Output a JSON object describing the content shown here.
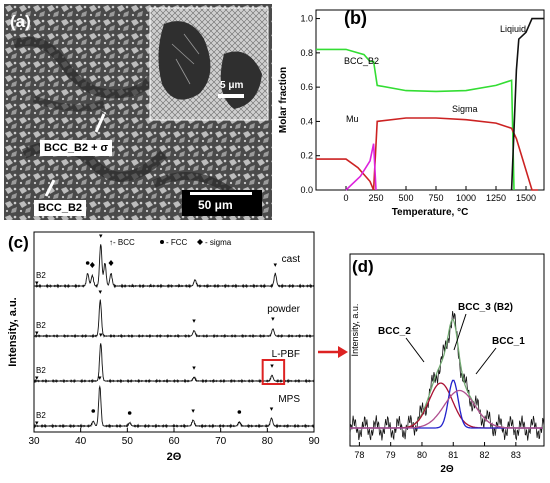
{
  "panel_a": {
    "label": "(a)",
    "phase_1": "BCC_B2 + σ",
    "phase_2": "BCC_B2",
    "scale_main": "50 μm",
    "scale_inset": "5 μm"
  },
  "chart_data": [
    {
      "panel": "(b)",
      "type": "line",
      "xlabel": "Temperature, °C",
      "ylabel": "Molar fraction",
      "xlim": [
        -250,
        1650
      ],
      "ylim": [
        0,
        1.05
      ],
      "xticks": [
        0,
        250,
        500,
        750,
        1000,
        1250,
        1500
      ],
      "yticks": [
        0.0,
        0.2,
        0.4,
        0.6,
        0.8,
        1.0
      ],
      "annotations": [
        "BCC_B2",
        "Sigma",
        "Mu",
        "Liqiuid"
      ],
      "series": [
        {
          "name": "BCC_B2",
          "color": "#33dd33",
          "x": [
            -250,
            0,
            150,
            200,
            230,
            260,
            500,
            750,
            1000,
            1250,
            1380,
            1400
          ],
          "y": [
            0.82,
            0.82,
            0.79,
            0.75,
            0.75,
            0.61,
            0.58,
            0.575,
            0.58,
            0.61,
            0.64,
            0.0
          ]
        },
        {
          "name": "Sigma",
          "color": "#cc2222",
          "x": [
            -250,
            0,
            100,
            200,
            230,
            260,
            500,
            750,
            1000,
            1250,
            1380,
            1420,
            1550,
            1600
          ],
          "y": [
            0.18,
            0.18,
            0.13,
            0.05,
            0.0,
            0.4,
            0.42,
            0.42,
            0.41,
            0.39,
            0.36,
            0.3,
            0.0,
            0.0
          ]
        },
        {
          "name": "Mu",
          "color": "#dd22dd",
          "x": [
            0,
            120,
            200,
            230,
            250
          ],
          "y": [
            0.0,
            0.08,
            0.17,
            0.27,
            0.0
          ]
        },
        {
          "name": "Liquid",
          "color": "#111111",
          "x": [
            1380,
            1420,
            1440,
            1500,
            1550,
            1650
          ],
          "y": [
            0.0,
            0.7,
            0.88,
            0.92,
            1.0,
            1.0
          ]
        }
      ]
    },
    {
      "panel": "(c)",
      "type": "line",
      "xlabel": "2Θ",
      "ylabel": "Intensity, a.u.",
      "xlim": [
        30,
        90
      ],
      "xticks": [
        30,
        40,
        50,
        60,
        70,
        80,
        90
      ],
      "legend": [
        "- BCC",
        "- FCC",
        "- sigma"
      ],
      "series": [
        {
          "name": "cast",
          "peaks": [
            [
              41.5,
              0.3
            ],
            [
              42.5,
              0.25
            ],
            [
              44.3,
              1.0
            ],
            [
              45.2,
              0.55
            ],
            [
              46.5,
              0.3
            ],
            [
              64.5,
              0.15
            ],
            [
              81.7,
              0.3
            ]
          ]
        },
        {
          "name": "powder",
          "peaks": [
            [
              44.2,
              1.0
            ],
            [
              64.3,
              0.15
            ],
            [
              81.2,
              0.2
            ]
          ]
        },
        {
          "name": "L-PBF",
          "peaks": [
            [
              44.3,
              1.0
            ],
            [
              64.3,
              0.1
            ],
            [
              81.0,
              0.15
            ]
          ]
        },
        {
          "name": "MPS",
          "peaks": [
            [
              42.7,
              0.12
            ],
            [
              44.1,
              1.0
            ],
            [
              50.5,
              0.08
            ],
            [
              64.1,
              0.15
            ],
            [
              74.0,
              0.1
            ],
            [
              80.9,
              0.2
            ]
          ]
        }
      ],
      "annotations": [
        "B2",
        "B2",
        "B2",
        "B2"
      ]
    },
    {
      "panel": "(d)",
      "type": "line",
      "xlabel": "2Θ",
      "ylabel": "Intensity, a.u.",
      "xlim": [
        77.7,
        83.9
      ],
      "xticks": [
        78,
        79,
        80,
        81,
        82,
        83
      ],
      "annotations": [
        "BCC_2",
        "BCC_3 (B2)",
        "BCC_1"
      ],
      "series": [
        {
          "name": "BCC_2",
          "color": "#aa1133",
          "center": 80.6,
          "height": 0.3,
          "width": 0.85
        },
        {
          "name": "BCC_3 (B2)",
          "color": "#2222cc",
          "center": 81.0,
          "height": 0.32,
          "width": 0.35
        },
        {
          "name": "BCC_1",
          "color": "#b05090",
          "center": 81.2,
          "height": 0.25,
          "width": 1.1
        }
      ]
    }
  ]
}
